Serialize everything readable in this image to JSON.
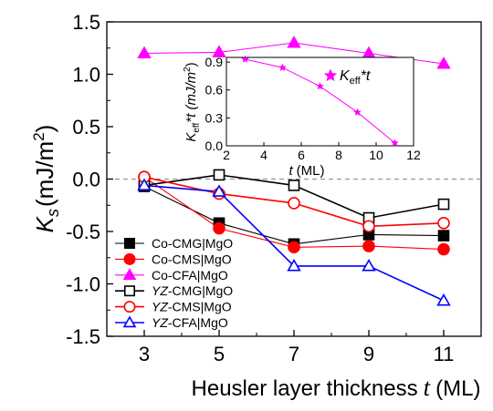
{
  "chart_data": [
    {
      "id": "main",
      "type": "line",
      "ylabel": "K",
      "ylabel_sub": "s",
      "ylabel_unit": "(mJ/m",
      "ylabel_unit_sup": "2",
      "ylabel_close": ")",
      "xlabel": "Heusler layer thickness",
      "xlabel_var": "t",
      "xlabel_unit": "(ML)",
      "x": [
        3,
        5,
        7,
        9,
        11
      ],
      "xlim": [
        2,
        12
      ],
      "ylim": [
        -1.5,
        1.5
      ],
      "x_ticks": [
        3,
        5,
        7,
        9,
        11
      ],
      "y_ticks": [
        -1.5,
        -1.0,
        -0.5,
        0.0,
        0.5,
        1.0,
        1.5
      ],
      "y_tick_labels": [
        "-1.5",
        "-1.0",
        "-0.5",
        "0.0",
        "0.5",
        "1.0",
        "1.5"
      ],
      "zero_line": "dashed",
      "legend_position": "lower-left",
      "series": [
        {
          "name": "Co-CMG|MgO",
          "prefix": "Co-CMG|MgO",
          "italic_prefix": false,
          "rest": "",
          "values": [
            -0.07,
            -0.42,
            -0.62,
            -0.53,
            -0.54
          ],
          "color": "#000000",
          "marker": "square",
          "filled": true
        },
        {
          "name": "Co-CMS|MgO",
          "prefix": "Co-CMS|MgO",
          "italic_prefix": false,
          "rest": "",
          "values": [
            0.02,
            -0.47,
            -0.65,
            -0.64,
            -0.67
          ],
          "color": "#ff0000",
          "marker": "circle",
          "filled": true
        },
        {
          "name": "Co-CFA|MgO",
          "prefix": "Co-CFA|MgO",
          "italic_prefix": false,
          "rest": "",
          "values": [
            1.2,
            1.21,
            1.3,
            1.2,
            1.1
          ],
          "color": "#ff00ff",
          "marker": "triangle",
          "filled": true
        },
        {
          "name": "YZ-CMG|MgO",
          "prefix": "YZ",
          "italic_prefix": true,
          "rest": "-CMG|MgO",
          "values": [
            -0.06,
            0.04,
            -0.06,
            -0.37,
            -0.24
          ],
          "color": "#000000",
          "marker": "square",
          "filled": false
        },
        {
          "name": "YZ-CMS|MgO",
          "prefix": "YZ",
          "italic_prefix": true,
          "rest": "-CMS|MgO",
          "values": [
            0.02,
            -0.14,
            -0.23,
            -0.45,
            -0.42
          ],
          "color": "#ff0000",
          "marker": "circle",
          "filled": false
        },
        {
          "name": "YZ-CFA|MgO",
          "prefix": "YZ",
          "italic_prefix": true,
          "rest": "-CFA|MgO",
          "values": [
            -0.06,
            -0.12,
            -0.83,
            -0.83,
            -1.16
          ],
          "color": "#0000ff",
          "marker": "triangle",
          "filled": false
        }
      ]
    },
    {
      "id": "inset",
      "type": "line",
      "xlabel_var": "t",
      "xlabel_unit": "(ML)",
      "ylabel_var": "K",
      "ylabel_sub": "eff",
      "ylabel_rest": "*t (mJ/m",
      "ylabel_sup": "2",
      "ylabel_close": ")",
      "xlim": [
        2,
        12
      ],
      "ylim": [
        0.0,
        0.9
      ],
      "x_ticks": [
        2,
        4,
        6,
        8,
        10,
        12
      ],
      "x_tick_labels": [
        "2",
        "4",
        "6",
        "8",
        "10",
        "12"
      ],
      "y_ticks": [
        0.0,
        0.3,
        0.6,
        0.9
      ],
      "y_tick_labels": [
        "0.0",
        "0.3",
        "0.6",
        "0.9"
      ],
      "legend_position": "top-right",
      "series": [
        {
          "name": "Keff*t",
          "legend_var": "K",
          "legend_sub": "eff",
          "legend_rest": "*t",
          "x": [
            3,
            5,
            7,
            9,
            11
          ],
          "values": [
            0.93,
            0.84,
            0.64,
            0.36,
            0.03
          ],
          "color": "#ff00ff",
          "marker": "star"
        }
      ]
    }
  ]
}
